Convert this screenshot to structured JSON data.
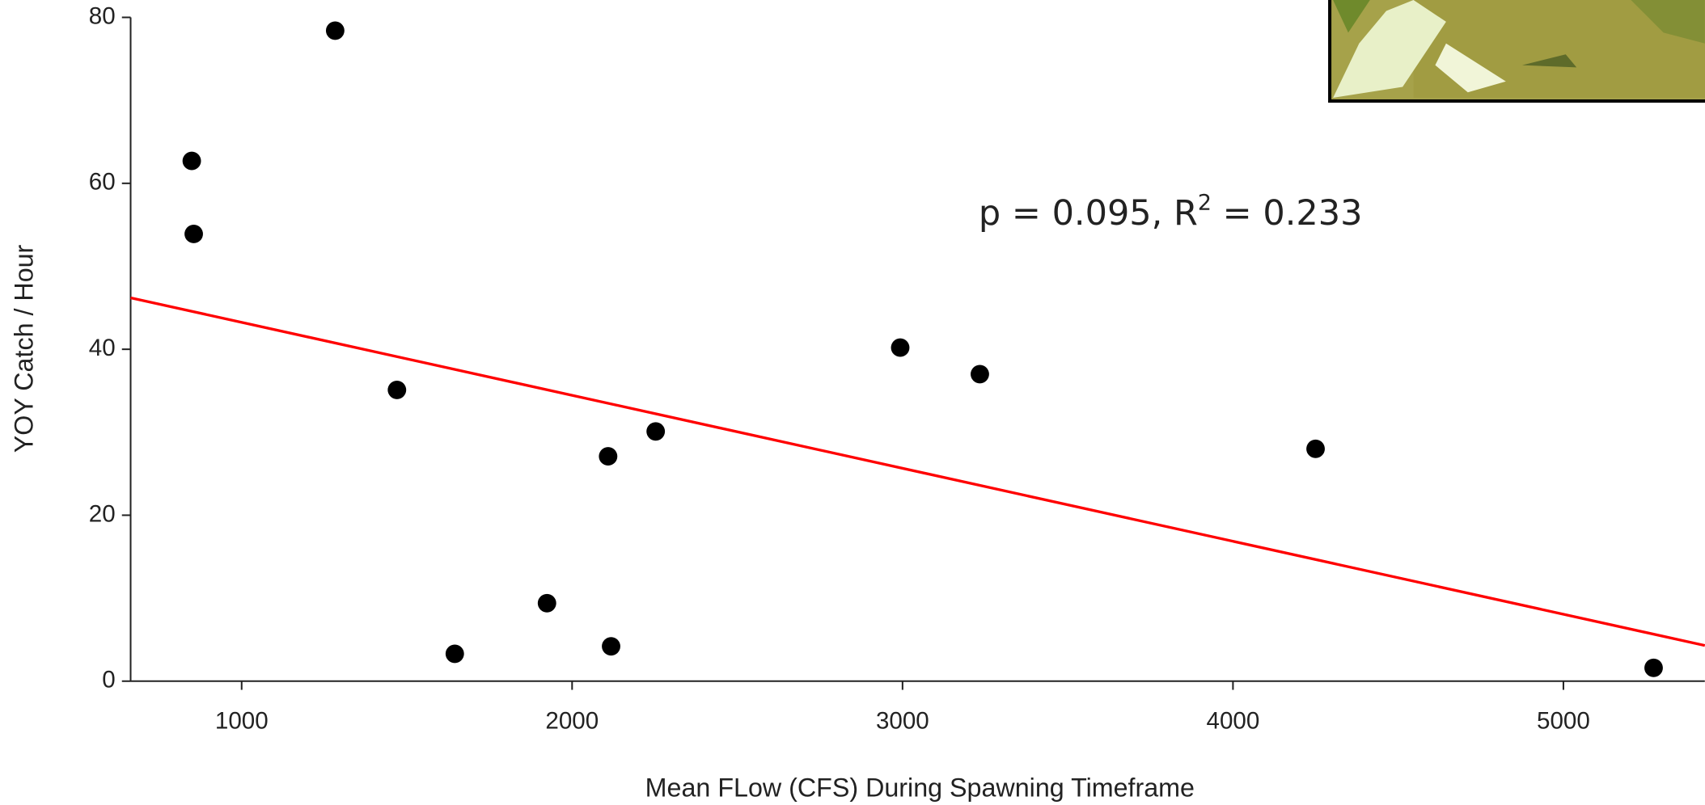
{
  "chart_data": {
    "type": "scatter",
    "x_label": "Mean FLow (CFS) During Spawning Timeframe",
    "y_label": "YOY Catch / Hour",
    "annotation": {
      "parts": [
        "p = 0.095,  R",
        "2",
        " = 0.233"
      ]
    },
    "x": [
      1283,
      849,
      855,
      1470,
      1645,
      1924,
      2109,
      2118,
      2253,
      2993,
      3234,
      4250,
      5273
    ],
    "values": [
      78.4,
      62.7,
      53.9,
      35.1,
      3.3,
      9.4,
      27.1,
      4.2,
      30.1,
      40.2,
      37.0,
      28.0,
      1.6
    ],
    "color": "#000000",
    "trendline": {
      "color": "#ff0000",
      "x": [
        664,
        5428
      ],
      "values": [
        46.2,
        4.3
      ]
    },
    "xlim": [
      664,
      5428
    ],
    "ylim": [
      0,
      80
    ],
    "xticks": [
      1000,
      2000,
      3000,
      4000,
      5000
    ],
    "yticks": [
      0,
      20,
      40,
      60,
      80
    ]
  }
}
